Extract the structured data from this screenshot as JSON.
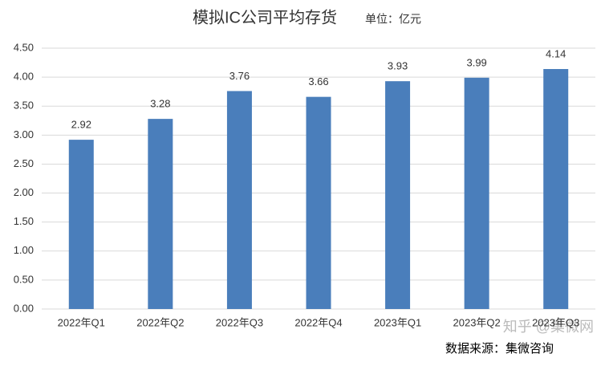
{
  "chart_data": {
    "type": "bar",
    "title": "模拟IC公司平均存货",
    "subtitle": "单位：亿元",
    "source": "数据来源：集微咨询",
    "watermark": "知乎 @集微网",
    "categories": [
      "2022年Q1",
      "2022年Q2",
      "2022年Q3",
      "2022年Q4",
      "2023年Q1",
      "2023年Q2",
      "2023年Q3"
    ],
    "values": [
      2.92,
      3.28,
      3.76,
      3.66,
      3.93,
      3.99,
      4.14
    ],
    "color": "#4a7ebb",
    "ylim": [
      0,
      4.5
    ],
    "yticks": [
      {
        "value": 0,
        "label": "0.00"
      },
      {
        "value": 0.5,
        "label": "0.50"
      },
      {
        "value": 1,
        "label": "1.00"
      },
      {
        "value": 1.5,
        "label": "1.50"
      },
      {
        "value": 2,
        "label": "2.00"
      },
      {
        "value": 2.5,
        "label": "2.50"
      },
      {
        "value": 3,
        "label": "3.00"
      },
      {
        "value": 3.5,
        "label": "3.50"
      },
      {
        "value": 4,
        "label": "4.00"
      },
      {
        "value": 4.5,
        "label": "4.50"
      }
    ],
    "grid": true
  }
}
